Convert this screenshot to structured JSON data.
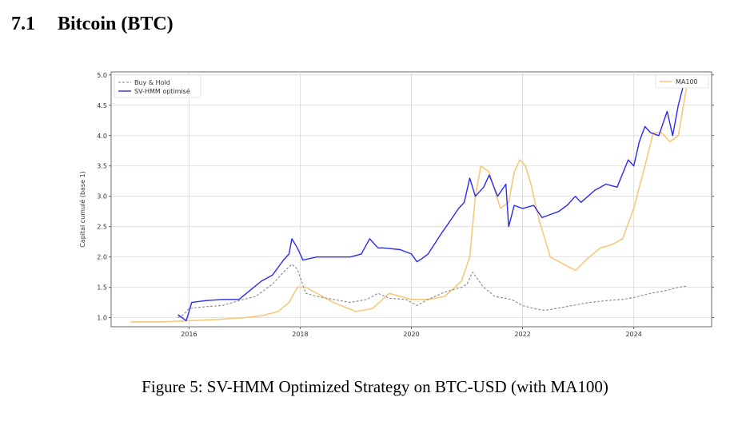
{
  "section": {
    "number": "7.1",
    "title": "Bitcoin (BTC)"
  },
  "caption": "Figure 5: SV-HMM Optimized Strategy on BTC-USD (with MA100)",
  "chart_data": {
    "type": "line",
    "title": "",
    "xlabel": "",
    "ylabel": "Capital cumulé (base 1)",
    "xlim": [
      2014.6,
      2025.4
    ],
    "ylim": [
      0.85,
      5.05
    ],
    "xticks": [
      2016,
      2018,
      2020,
      2022,
      2024
    ],
    "xtick_labels": [
      "2016",
      "2018",
      "2020",
      "2022",
      "2024"
    ],
    "yticks": [
      1.0,
      1.5,
      2.0,
      2.5,
      3.0,
      3.5,
      4.0,
      4.5,
      5.0
    ],
    "ytick_labels": [
      "1.0",
      "1.5",
      "2.0",
      "2.5",
      "3.0",
      "3.5",
      "4.0",
      "4.5",
      "5.0"
    ],
    "grid": true,
    "legend_left_placement": "upper-left",
    "legend_right_placement": "upper-right",
    "colors": {
      "buy_hold": "#8a8a8a",
      "svhmm": "#2b2bee",
      "ma100": "#f5c97a"
    },
    "series": [
      {
        "name": "Buy & Hold",
        "style": "dashed",
        "x": [
          2015.8,
          2015.9,
          2016.0,
          2016.3,
          2016.6,
          2016.9,
          2017.2,
          2017.5,
          2017.7,
          2017.85,
          2017.95,
          2018.1,
          2018.3,
          2018.6,
          2018.9,
          2019.2,
          2019.4,
          2019.6,
          2019.9,
          2020.1,
          2020.3,
          2020.6,
          2020.9,
          2021.0,
          2021.1,
          2021.3,
          2021.5,
          2021.8,
          2022.0,
          2022.2,
          2022.4,
          2022.6,
          2022.9,
          2023.2,
          2023.5,
          2023.8,
          2024.0,
          2024.3,
          2024.6,
          2024.8,
          2024.95
        ],
        "values": [
          1.0,
          1.05,
          1.15,
          1.18,
          1.2,
          1.28,
          1.35,
          1.55,
          1.75,
          1.88,
          1.8,
          1.4,
          1.35,
          1.3,
          1.25,
          1.3,
          1.4,
          1.32,
          1.3,
          1.2,
          1.3,
          1.42,
          1.5,
          1.55,
          1.75,
          1.5,
          1.35,
          1.3,
          1.2,
          1.15,
          1.12,
          1.15,
          1.2,
          1.25,
          1.28,
          1.3,
          1.33,
          1.4,
          1.45,
          1.5,
          1.52
        ]
      },
      {
        "name": "SV-HMM optimisé",
        "style": "solid",
        "x": [
          2015.8,
          2015.95,
          2016.05,
          2016.3,
          2016.6,
          2016.9,
          2017.1,
          2017.3,
          2017.5,
          2017.7,
          2017.8,
          2017.85,
          2017.95,
          2018.05,
          2018.3,
          2018.6,
          2018.9,
          2019.1,
          2019.25,
          2019.4,
          2019.5,
          2019.8,
          2020.0,
          2020.1,
          2020.2,
          2020.3,
          2020.55,
          2020.7,
          2020.85,
          2020.95,
          2021.05,
          2021.15,
          2021.3,
          2021.4,
          2021.55,
          2021.7,
          2021.75,
          2021.85,
          2022.0,
          2022.2,
          2022.35,
          2022.5,
          2022.65,
          2022.8,
          2022.95,
          2023.05,
          2023.3,
          2023.5,
          2023.7,
          2023.9,
          2024.0,
          2024.1,
          2024.2,
          2024.3,
          2024.45,
          2024.6,
          2024.7,
          2024.8,
          2024.9,
          2024.97
        ],
        "values": [
          1.05,
          0.95,
          1.25,
          1.28,
          1.3,
          1.3,
          1.45,
          1.6,
          1.7,
          1.95,
          2.05,
          2.3,
          2.15,
          1.95,
          2.0,
          2.0,
          2.0,
          2.05,
          2.3,
          2.15,
          2.15,
          2.12,
          2.05,
          1.92,
          1.98,
          2.05,
          2.4,
          2.6,
          2.8,
          2.9,
          3.3,
          3.0,
          3.15,
          3.35,
          3.0,
          3.2,
          2.5,
          2.85,
          2.8,
          2.85,
          2.65,
          2.7,
          2.75,
          2.85,
          3.0,
          2.9,
          3.1,
          3.2,
          3.15,
          3.6,
          3.5,
          3.9,
          4.15,
          4.05,
          4.0,
          4.4,
          4.0,
          4.5,
          4.85,
          4.8
        ]
      },
      {
        "name": "MA100",
        "style": "solid",
        "x": [
          2014.95,
          2015.5,
          2016.0,
          2016.5,
          2017.0,
          2017.3,
          2017.6,
          2017.8,
          2017.95,
          2018.1,
          2018.3,
          2018.6,
          2019.0,
          2019.3,
          2019.6,
          2020.0,
          2020.3,
          2020.6,
          2020.9,
          2021.05,
          2021.15,
          2021.25,
          2021.4,
          2021.6,
          2021.75,
          2021.85,
          2021.95,
          2022.05,
          2022.15,
          2022.3,
          2022.5,
          2022.7,
          2022.95,
          2023.2,
          2023.4,
          2023.6,
          2023.8,
          2024.0,
          2024.2,
          2024.35,
          2024.5,
          2024.65,
          2024.8,
          2024.95
        ],
        "values": [
          0.93,
          0.93,
          0.95,
          0.97,
          1.0,
          1.03,
          1.1,
          1.25,
          1.5,
          1.5,
          1.4,
          1.25,
          1.1,
          1.15,
          1.4,
          1.3,
          1.3,
          1.35,
          1.6,
          2.0,
          3.0,
          3.5,
          3.4,
          2.8,
          2.9,
          3.4,
          3.6,
          3.5,
          3.2,
          2.6,
          2.0,
          1.9,
          1.78,
          2.0,
          2.15,
          2.2,
          2.3,
          2.8,
          3.5,
          4.05,
          4.05,
          3.9,
          4.0,
          4.8
        ]
      }
    ]
  }
}
